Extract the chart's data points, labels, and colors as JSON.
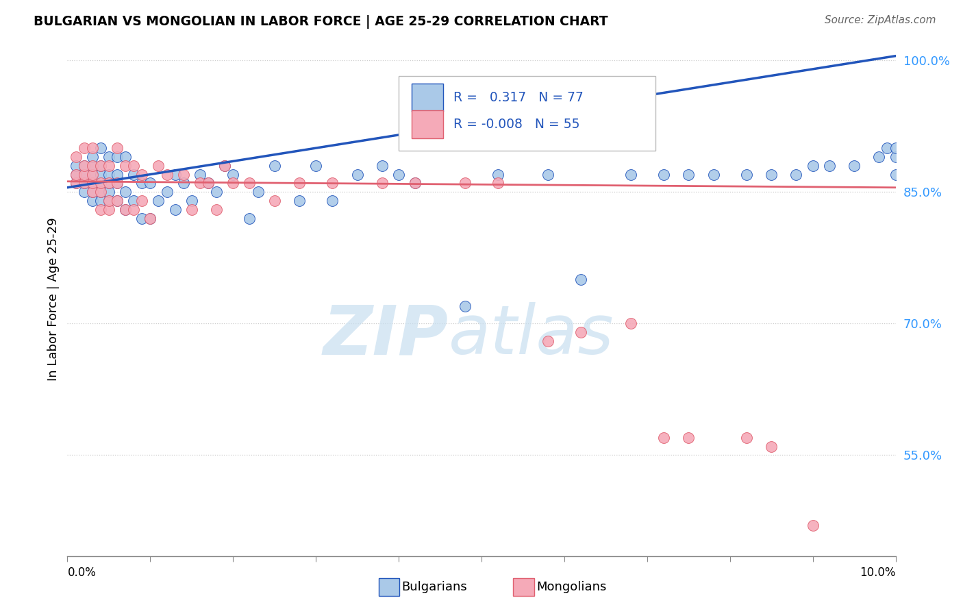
{
  "title": "BULGARIAN VS MONGOLIAN IN LABOR FORCE | AGE 25-29 CORRELATION CHART",
  "source": "Source: ZipAtlas.com",
  "ylabel": "In Labor Force | Age 25-29",
  "watermark_zip": "ZIP",
  "watermark_atlas": "atlas",
  "legend_bulgarian": "Bulgarians",
  "legend_mongolian": "Mongolians",
  "r_bulgarian": 0.317,
  "n_bulgarian": 77,
  "r_mongolian": -0.008,
  "n_mongolian": 55,
  "xlim": [
    0.0,
    0.1
  ],
  "ylim": [
    0.435,
    1.02
  ],
  "yticks": [
    0.55,
    0.7,
    0.85,
    1.0
  ],
  "ytick_labels": [
    "55.0%",
    "70.0%",
    "85.0%",
    "100.0%"
  ],
  "bulgarian_color": "#aac9e8",
  "mongolian_color": "#f5aab8",
  "trend_bulgarian_color": "#2255bb",
  "trend_mongolian_color": "#e06070",
  "bulgarian_x": [
    0.001,
    0.001,
    0.001,
    0.002,
    0.002,
    0.002,
    0.002,
    0.003,
    0.003,
    0.003,
    0.003,
    0.003,
    0.003,
    0.004,
    0.004,
    0.004,
    0.004,
    0.004,
    0.004,
    0.005,
    0.005,
    0.005,
    0.005,
    0.005,
    0.006,
    0.006,
    0.006,
    0.006,
    0.007,
    0.007,
    0.007,
    0.008,
    0.008,
    0.009,
    0.009,
    0.01,
    0.01,
    0.011,
    0.012,
    0.013,
    0.013,
    0.014,
    0.015,
    0.016,
    0.017,
    0.018,
    0.019,
    0.02,
    0.022,
    0.023,
    0.025,
    0.028,
    0.03,
    0.032,
    0.035,
    0.038,
    0.04,
    0.042,
    0.048,
    0.052,
    0.058,
    0.062,
    0.068,
    0.072,
    0.075,
    0.078,
    0.082,
    0.085,
    0.088,
    0.09,
    0.092,
    0.095,
    0.098,
    0.099,
    0.1,
    0.1,
    0.1
  ],
  "bulgarian_y": [
    0.86,
    0.87,
    0.88,
    0.85,
    0.86,
    0.87,
    0.88,
    0.84,
    0.85,
    0.86,
    0.87,
    0.88,
    0.89,
    0.84,
    0.85,
    0.86,
    0.87,
    0.88,
    0.9,
    0.84,
    0.85,
    0.86,
    0.87,
    0.89,
    0.84,
    0.86,
    0.87,
    0.89,
    0.83,
    0.85,
    0.89,
    0.84,
    0.87,
    0.82,
    0.86,
    0.82,
    0.86,
    0.84,
    0.85,
    0.83,
    0.87,
    0.86,
    0.84,
    0.87,
    0.86,
    0.85,
    0.88,
    0.87,
    0.82,
    0.85,
    0.88,
    0.84,
    0.88,
    0.84,
    0.87,
    0.88,
    0.87,
    0.86,
    0.72,
    0.87,
    0.87,
    0.75,
    0.87,
    0.87,
    0.87,
    0.87,
    0.87,
    0.87,
    0.87,
    0.88,
    0.88,
    0.88,
    0.89,
    0.9,
    0.89,
    0.9,
    0.87
  ],
  "mongolian_x": [
    0.001,
    0.001,
    0.001,
    0.002,
    0.002,
    0.002,
    0.002,
    0.003,
    0.003,
    0.003,
    0.003,
    0.003,
    0.004,
    0.004,
    0.004,
    0.004,
    0.005,
    0.005,
    0.005,
    0.005,
    0.006,
    0.006,
    0.006,
    0.007,
    0.007,
    0.008,
    0.008,
    0.009,
    0.009,
    0.01,
    0.011,
    0.012,
    0.014,
    0.015,
    0.016,
    0.017,
    0.018,
    0.019,
    0.02,
    0.022,
    0.025,
    0.028,
    0.032,
    0.038,
    0.042,
    0.048,
    0.052,
    0.058,
    0.062,
    0.068,
    0.072,
    0.075,
    0.082,
    0.085,
    0.09
  ],
  "mongolian_y": [
    0.86,
    0.87,
    0.89,
    0.86,
    0.87,
    0.88,
    0.9,
    0.85,
    0.86,
    0.87,
    0.88,
    0.9,
    0.83,
    0.85,
    0.86,
    0.88,
    0.83,
    0.84,
    0.86,
    0.88,
    0.84,
    0.86,
    0.9,
    0.83,
    0.88,
    0.83,
    0.88,
    0.84,
    0.87,
    0.82,
    0.88,
    0.87,
    0.87,
    0.83,
    0.86,
    0.86,
    0.83,
    0.88,
    0.86,
    0.86,
    0.84,
    0.86,
    0.86,
    0.86,
    0.86,
    0.86,
    0.86,
    0.68,
    0.69,
    0.7,
    0.57,
    0.57,
    0.57,
    0.56,
    0.47
  ],
  "trend_b_x0": 0.0,
  "trend_b_y0": 0.855,
  "trend_b_x1": 0.1,
  "trend_b_y1": 1.005,
  "trend_m_x0": 0.0,
  "trend_m_y0": 0.862,
  "trend_m_x1": 0.1,
  "trend_m_y1": 0.855
}
